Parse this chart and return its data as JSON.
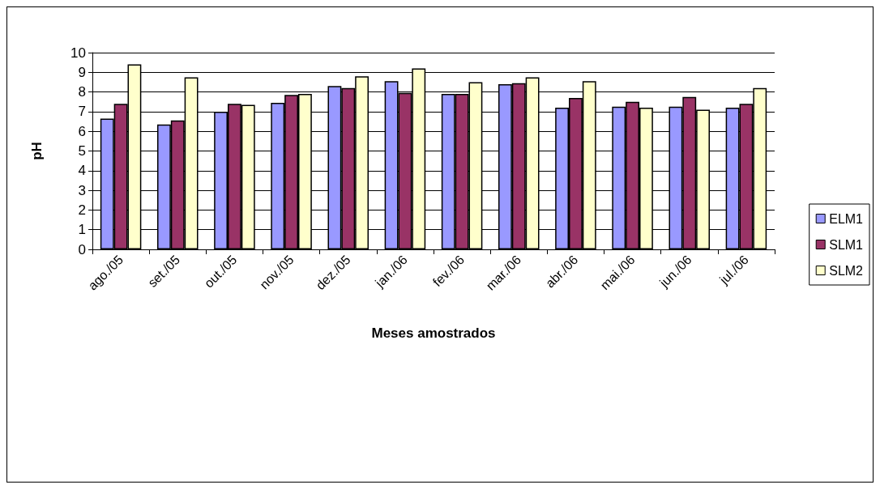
{
  "chart_data": {
    "type": "bar",
    "xlabel": "Meses amostrados",
    "ylabel": "pH",
    "categories": [
      "ago./05",
      "set./05",
      "out./05",
      "nov./05",
      "dez./05",
      "jan./06",
      "fev./06",
      "mar./06",
      "abr./06",
      "mai./06",
      "jun./06",
      "jul./06"
    ],
    "series": [
      {
        "name": "ELM1",
        "color": "#9999ff",
        "values": [
          6.65,
          6.35,
          7.0,
          7.45,
          8.3,
          8.55,
          7.9,
          8.4,
          7.2,
          7.25,
          7.25,
          7.2
        ]
      },
      {
        "name": "SLM1",
        "color": "#993366",
        "values": [
          7.4,
          6.55,
          7.4,
          7.85,
          8.2,
          7.95,
          7.9,
          8.45,
          7.7,
          7.5,
          7.75,
          7.4
        ]
      },
      {
        "name": "SLM2",
        "color": "#ffffcc",
        "values": [
          9.4,
          8.75,
          7.35,
          7.9,
          8.8,
          9.2,
          8.5,
          8.75,
          8.55,
          7.2,
          7.1,
          8.2
        ]
      }
    ],
    "ylim": [
      0,
      10
    ],
    "yticks": [
      0,
      1,
      2,
      3,
      4,
      5,
      6,
      7,
      8,
      9,
      10
    ],
    "grid": "y",
    "legend": "right"
  }
}
